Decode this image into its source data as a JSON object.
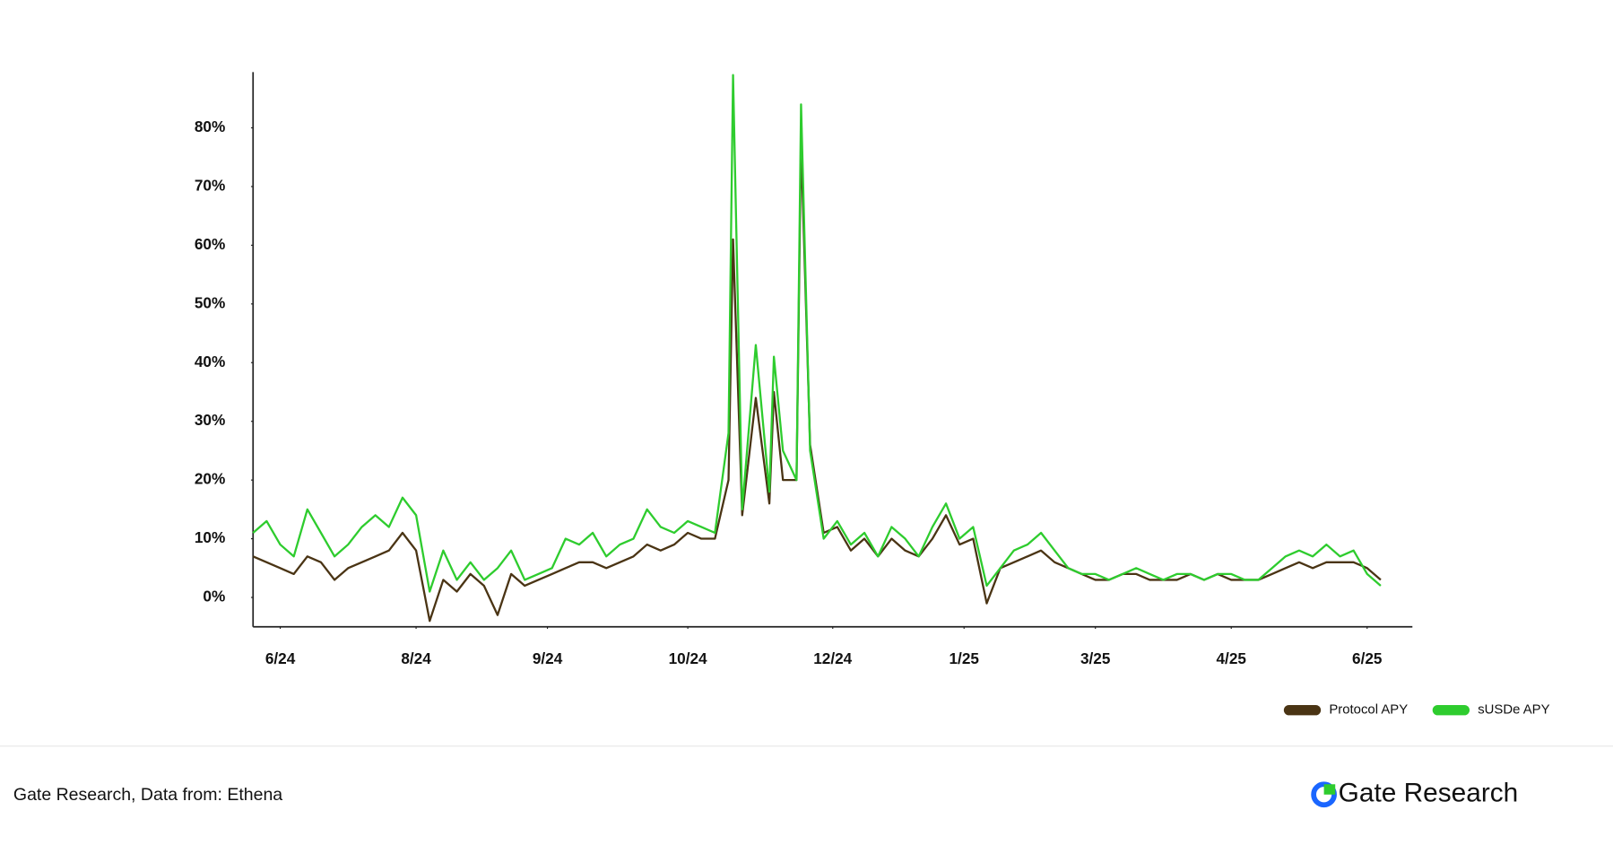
{
  "chart_data": {
    "type": "line",
    "x": [
      0,
      3,
      6,
      9,
      12,
      15,
      18,
      21,
      24,
      27,
      30,
      33,
      36,
      39,
      42,
      45,
      48,
      51,
      54,
      57,
      60,
      63,
      66,
      69,
      72,
      75,
      78,
      81,
      84,
      87,
      90,
      93,
      96,
      99,
      102,
      105,
      106,
      108,
      111,
      114,
      115,
      117,
      120,
      121,
      123,
      126,
      129,
      132,
      135,
      138,
      141,
      144,
      147,
      150,
      153,
      156,
      159,
      162,
      165,
      168,
      171,
      174,
      177,
      180,
      183,
      186,
      189,
      192,
      195,
      198,
      201,
      204,
      207,
      210,
      213,
      216,
      219,
      222,
      225,
      228,
      231,
      234,
      237,
      240,
      243,
      246,
      249
    ],
    "series": [
      {
        "name": "Protocol APY",
        "color": "#4a3414",
        "values": [
          7,
          6,
          5,
          4,
          7,
          6,
          3,
          5,
          6,
          7,
          8,
          11,
          8,
          -4,
          3,
          1,
          4,
          2,
          -3,
          4,
          2,
          3,
          4,
          5,
          6,
          6,
          5,
          6,
          7,
          9,
          8,
          9,
          11,
          10,
          10,
          20,
          61,
          14,
          34,
          16,
          35,
          20,
          20,
          78,
          26,
          11,
          12,
          8,
          10,
          7,
          10,
          8,
          7,
          10,
          14,
          9,
          10,
          -1,
          5,
          6,
          7,
          8,
          6,
          5,
          4,
          3,
          3,
          4,
          4,
          3,
          3,
          3,
          4,
          3,
          4,
          3,
          3,
          3,
          4,
          5,
          6,
          5,
          6,
          6,
          6,
          5,
          3
        ]
      },
      {
        "name": "sUSDe APY",
        "color": "#2ecc2e",
        "values": [
          11,
          13,
          9,
          7,
          15,
          11,
          7,
          9,
          12,
          14,
          12,
          17,
          14,
          1,
          8,
          3,
          6,
          3,
          5,
          8,
          3,
          4,
          5,
          10,
          9,
          11,
          7,
          9,
          10,
          15,
          12,
          11,
          13,
          12,
          11,
          28,
          89,
          15,
          43,
          18,
          41,
          25,
          20,
          84,
          25,
          10,
          13,
          9,
          11,
          7,
          12,
          10,
          7,
          12,
          16,
          10,
          12,
          2,
          5,
          8,
          9,
          11,
          8,
          5,
          4,
          4,
          3,
          4,
          5,
          4,
          3,
          4,
          4,
          3,
          4,
          4,
          3,
          3,
          5,
          7,
          8,
          7,
          9,
          7,
          8,
          4,
          2
        ]
      }
    ],
    "xlim": [
      0,
      256
    ],
    "xticks": [
      {
        "value": 6,
        "label": "6/24"
      },
      {
        "value": 36,
        "label": "8/24"
      },
      {
        "value": 65,
        "label": "9/24"
      },
      {
        "value": 96,
        "label": "10/24"
      },
      {
        "value": 128,
        "label": "12/24"
      },
      {
        "value": 157,
        "label": "1/25"
      },
      {
        "value": 186,
        "label": "3/25"
      },
      {
        "value": 216,
        "label": "4/25"
      },
      {
        "value": 246,
        "label": "6/25"
      }
    ],
    "ylim": [
      -5,
      89.5
    ],
    "yticks": [
      {
        "value": 0,
        "label": "0%"
      },
      {
        "value": 10,
        "label": "10%"
      },
      {
        "value": 20,
        "label": "20%"
      },
      {
        "value": 30,
        "label": "30%"
      },
      {
        "value": 40,
        "label": "40%"
      },
      {
        "value": 50,
        "label": "50%"
      },
      {
        "value": 60,
        "label": "60%"
      },
      {
        "value": 70,
        "label": "70%"
      },
      {
        "value": 80,
        "label": "80%"
      }
    ],
    "legend": "bottom-right",
    "source": "Gate Research, Data from: Ethena",
    "brand": "Gate Research"
  }
}
